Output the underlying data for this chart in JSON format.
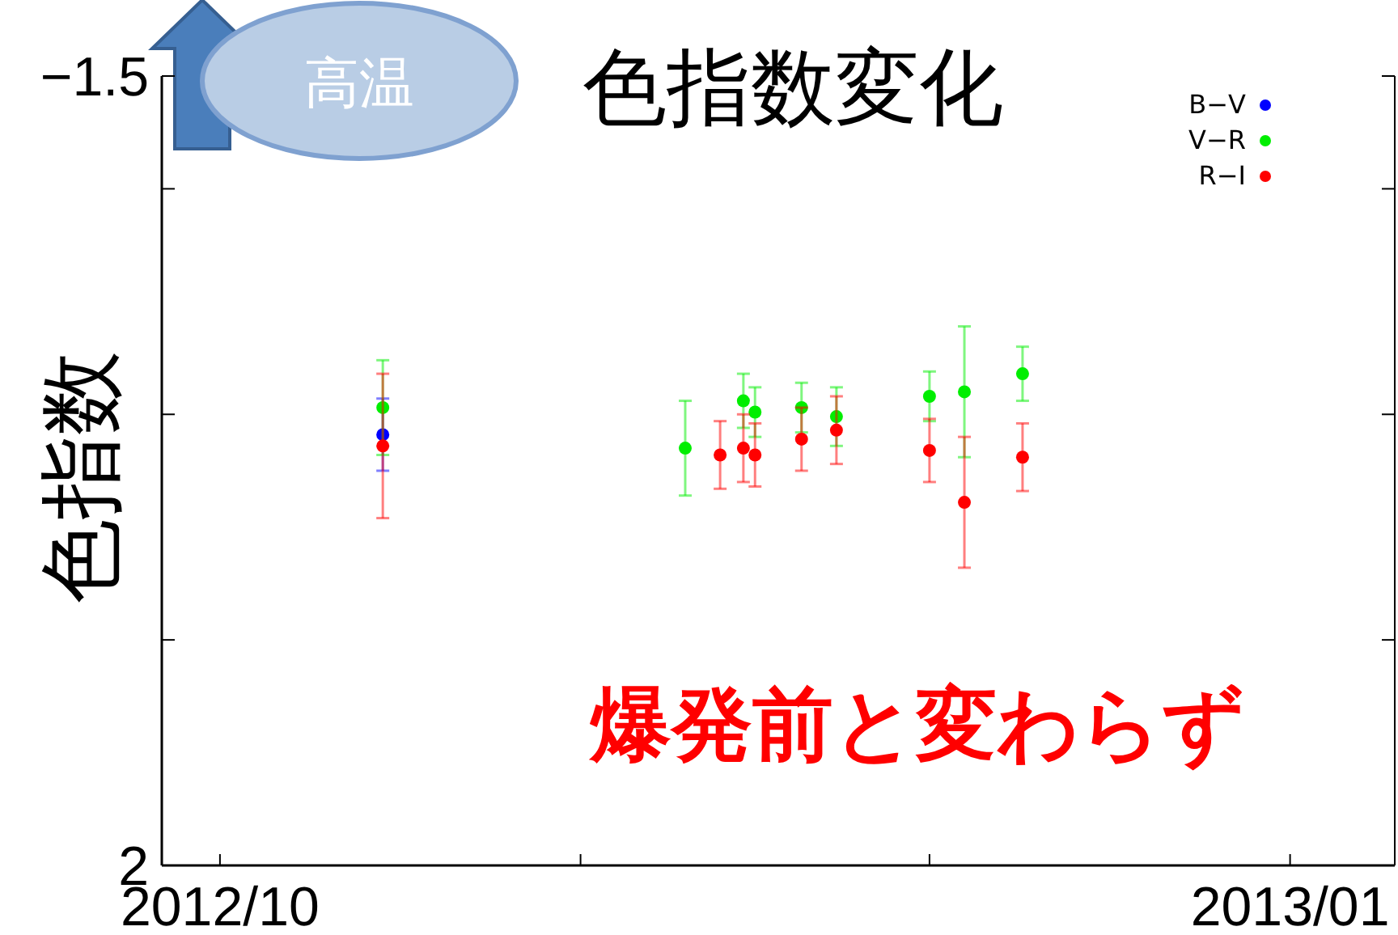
{
  "chart_data": {
    "type": "scatter",
    "title": "色指数変化",
    "ylabel": "色指数",
    "annotations": [
      "高温",
      "爆発前と変わらず"
    ],
    "xlim": [
      "2012-09-26",
      "2013-01-10"
    ],
    "xticks": [
      {
        "value": "2012-10-01",
        "label": "2012/10"
      },
      {
        "value": "2012-11-01",
        "label": null
      },
      {
        "value": "2012-12-01",
        "label": null
      },
      {
        "value": "2013-01-01",
        "label": "2013/01"
      }
    ],
    "ylim": [
      2,
      -1.5
    ],
    "yticks": [
      {
        "value": -1.5,
        "label": "−1.5"
      },
      {
        "value": -1,
        "label": null
      },
      {
        "value": 0,
        "label": null
      },
      {
        "value": 1,
        "label": null
      },
      {
        "value": 2,
        "label": "2"
      }
    ],
    "marker": "circle",
    "legend": "top right",
    "grid": false,
    "series": [
      {
        "name": "B−V",
        "color": "#0000ff",
        "x": [
          "2012-10-15"
        ],
        "values": [
          0.09
        ],
        "errors": [
          0.16
        ]
      },
      {
        "name": "V−R",
        "color": "#00ee00",
        "x": [
          "2012-10-15",
          "2012-11-10",
          "2012-11-15",
          "2012-11-16",
          "2012-11-20",
          "2012-11-23",
          "2012-12-01",
          "2012-12-04",
          "2012-12-09"
        ],
        "values": [
          -0.03,
          0.15,
          -0.06,
          -0.01,
          -0.03,
          0.01,
          -0.08,
          -0.1,
          -0.18
        ],
        "errors": [
          0.21,
          0.21,
          0.12,
          0.11,
          0.11,
          0.13,
          0.11,
          0.29,
          0.12
        ]
      },
      {
        "name": "R−I",
        "color": "#ff0000",
        "x": [
          "2012-10-15",
          "2012-11-13",
          "2012-11-15",
          "2012-11-16",
          "2012-11-20",
          "2012-11-23",
          "2012-12-01",
          "2012-12-04",
          "2012-12-09"
        ],
        "values": [
          0.14,
          0.18,
          0.15,
          0.18,
          0.11,
          0.07,
          0.16,
          0.39,
          0.19
        ],
        "errors": [
          0.32,
          0.15,
          0.15,
          0.14,
          0.14,
          0.15,
          0.14,
          0.29,
          0.15
        ]
      }
    ]
  }
}
